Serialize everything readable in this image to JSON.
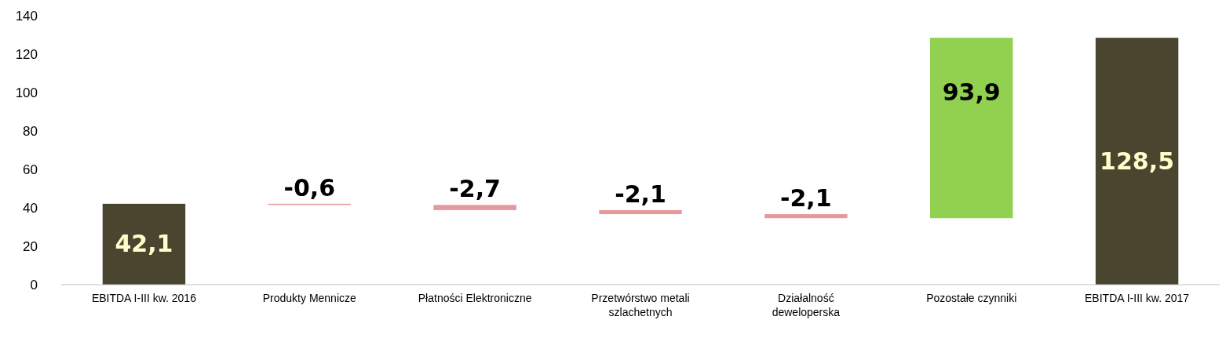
{
  "chart_data": {
    "type": "bar",
    "categories": [
      "EBITDA I-III kw. 2016",
      "Produkty Mennicze",
      "Płatności Elektroniczne",
      "Przetwórstwo metali szlachetnych",
      "Działalność deweloperska",
      "Pozostałe czynniki",
      "EBITDA I-III kw. 2017"
    ],
    "values": [
      42.1,
      -0.6,
      -2.7,
      -2.1,
      -2.1,
      93.9,
      128.5
    ],
    "base": [
      0,
      42.1,
      41.5,
      38.8,
      36.7,
      34.6,
      0
    ],
    "colors": [
      "#4a452f",
      "#e6999a",
      "#e6999a",
      "#e6999a",
      "#e6999a",
      "#92d050",
      "#4a452f"
    ],
    "value_labels": [
      "42,1",
      "-0,6",
      "-2,7",
      "-2,1",
      "-2,1",
      "93,9",
      "128,5"
    ],
    "ylim": [
      0,
      140
    ],
    "yticks": [
      0,
      20,
      40,
      60,
      80,
      100,
      120,
      140
    ]
  }
}
